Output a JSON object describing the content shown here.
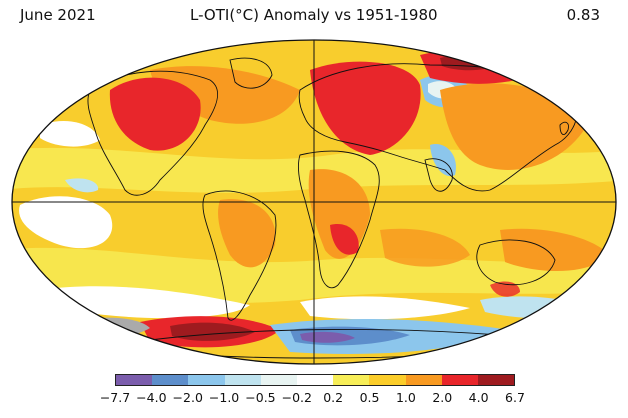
{
  "header": {
    "date": "June 2021",
    "title": "L-OTI(°C) Anomaly vs 1951-1980",
    "global_mean": "0.83"
  },
  "legend": {
    "labels": [
      "−7.7",
      "−4.0",
      "−2.0",
      "−1.0",
      "−0.5",
      "−0.2",
      "0.2",
      "0.5",
      "1.0",
      "2.0",
      "4.0",
      "6.7"
    ],
    "colors": [
      "#7b5dac",
      "#5d8ecb",
      "#8cc6ec",
      "#bfe3ef",
      "#e8f4f2",
      "#ffffff",
      "#f7ee58",
      "#fbcd2b",
      "#f89a21",
      "#e8262b",
      "#9e1b1f"
    ]
  },
  "map": {
    "projection": "robinson",
    "ocean_background": "#f8cd2d",
    "outline_color": "#111111"
  }
}
